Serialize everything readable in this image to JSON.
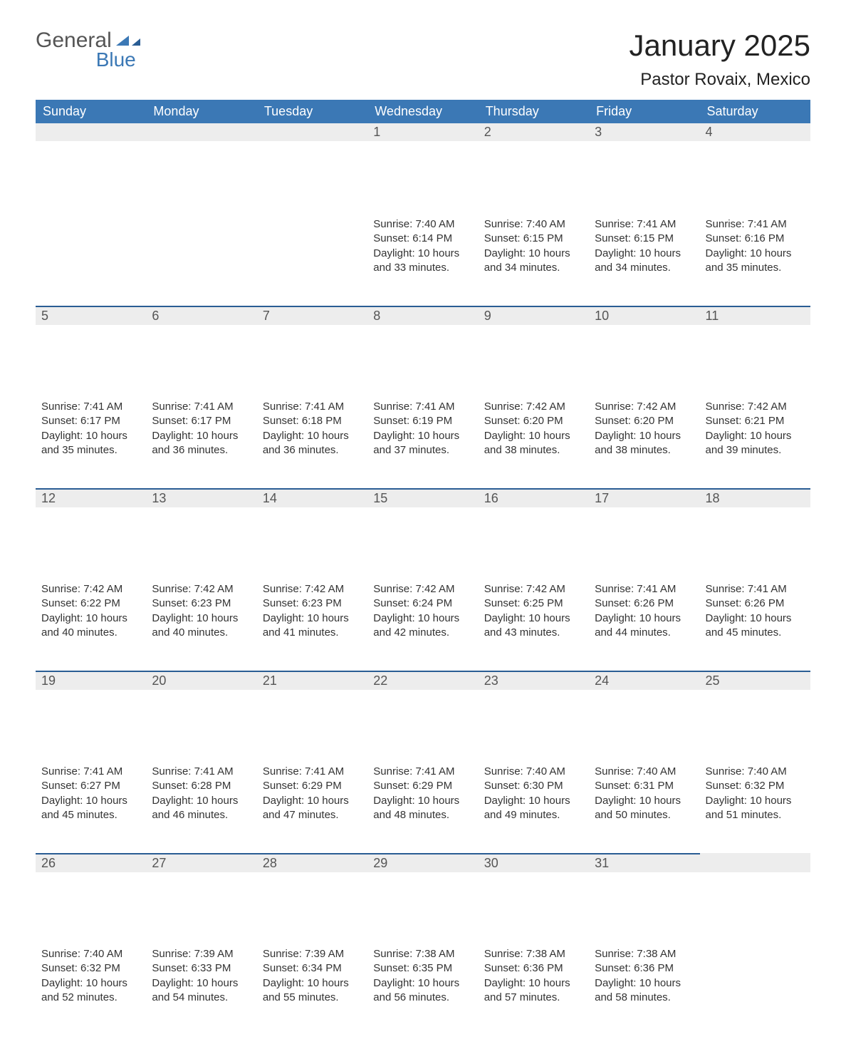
{
  "logo": {
    "text1": "General",
    "text2": "Blue"
  },
  "title": "January 2025",
  "location": "Pastor Rovaix, Mexico",
  "colors": {
    "header_bg": "#3b78b5",
    "header_text": "#ffffff",
    "daynum_bg": "#ededed",
    "daynum_text": "#555555",
    "body_text": "#333333",
    "row_divider": "#2a5d94",
    "page_bg": "#ffffff",
    "logo_gray": "#555555",
    "logo_blue": "#3b78b5"
  },
  "weekdays": [
    "Sunday",
    "Monday",
    "Tuesday",
    "Wednesday",
    "Thursday",
    "Friday",
    "Saturday"
  ],
  "weeks": [
    [
      {
        "n": "",
        "lines": [
          "",
          "",
          "",
          ""
        ]
      },
      {
        "n": "",
        "lines": [
          "",
          "",
          "",
          ""
        ]
      },
      {
        "n": "",
        "lines": [
          "",
          "",
          "",
          ""
        ]
      },
      {
        "n": "1",
        "lines": [
          "Sunrise: 7:40 AM",
          "Sunset: 6:14 PM",
          "Daylight: 10 hours",
          "and 33 minutes."
        ]
      },
      {
        "n": "2",
        "lines": [
          "Sunrise: 7:40 AM",
          "Sunset: 6:15 PM",
          "Daylight: 10 hours",
          "and 34 minutes."
        ]
      },
      {
        "n": "3",
        "lines": [
          "Sunrise: 7:41 AM",
          "Sunset: 6:15 PM",
          "Daylight: 10 hours",
          "and 34 minutes."
        ]
      },
      {
        "n": "4",
        "lines": [
          "Sunrise: 7:41 AM",
          "Sunset: 6:16 PM",
          "Daylight: 10 hours",
          "and 35 minutes."
        ]
      }
    ],
    [
      {
        "n": "5",
        "lines": [
          "Sunrise: 7:41 AM",
          "Sunset: 6:17 PM",
          "Daylight: 10 hours",
          "and 35 minutes."
        ]
      },
      {
        "n": "6",
        "lines": [
          "Sunrise: 7:41 AM",
          "Sunset: 6:17 PM",
          "Daylight: 10 hours",
          "and 36 minutes."
        ]
      },
      {
        "n": "7",
        "lines": [
          "Sunrise: 7:41 AM",
          "Sunset: 6:18 PM",
          "Daylight: 10 hours",
          "and 36 minutes."
        ]
      },
      {
        "n": "8",
        "lines": [
          "Sunrise: 7:41 AM",
          "Sunset: 6:19 PM",
          "Daylight: 10 hours",
          "and 37 minutes."
        ]
      },
      {
        "n": "9",
        "lines": [
          "Sunrise: 7:42 AM",
          "Sunset: 6:20 PM",
          "Daylight: 10 hours",
          "and 38 minutes."
        ]
      },
      {
        "n": "10",
        "lines": [
          "Sunrise: 7:42 AM",
          "Sunset: 6:20 PM",
          "Daylight: 10 hours",
          "and 38 minutes."
        ]
      },
      {
        "n": "11",
        "lines": [
          "Sunrise: 7:42 AM",
          "Sunset: 6:21 PM",
          "Daylight: 10 hours",
          "and 39 minutes."
        ]
      }
    ],
    [
      {
        "n": "12",
        "lines": [
          "Sunrise: 7:42 AM",
          "Sunset: 6:22 PM",
          "Daylight: 10 hours",
          "and 40 minutes."
        ]
      },
      {
        "n": "13",
        "lines": [
          "Sunrise: 7:42 AM",
          "Sunset: 6:23 PM",
          "Daylight: 10 hours",
          "and 40 minutes."
        ]
      },
      {
        "n": "14",
        "lines": [
          "Sunrise: 7:42 AM",
          "Sunset: 6:23 PM",
          "Daylight: 10 hours",
          "and 41 minutes."
        ]
      },
      {
        "n": "15",
        "lines": [
          "Sunrise: 7:42 AM",
          "Sunset: 6:24 PM",
          "Daylight: 10 hours",
          "and 42 minutes."
        ]
      },
      {
        "n": "16",
        "lines": [
          "Sunrise: 7:42 AM",
          "Sunset: 6:25 PM",
          "Daylight: 10 hours",
          "and 43 minutes."
        ]
      },
      {
        "n": "17",
        "lines": [
          "Sunrise: 7:41 AM",
          "Sunset: 6:26 PM",
          "Daylight: 10 hours",
          "and 44 minutes."
        ]
      },
      {
        "n": "18",
        "lines": [
          "Sunrise: 7:41 AM",
          "Sunset: 6:26 PM",
          "Daylight: 10 hours",
          "and 45 minutes."
        ]
      }
    ],
    [
      {
        "n": "19",
        "lines": [
          "Sunrise: 7:41 AM",
          "Sunset: 6:27 PM",
          "Daylight: 10 hours",
          "and 45 minutes."
        ]
      },
      {
        "n": "20",
        "lines": [
          "Sunrise: 7:41 AM",
          "Sunset: 6:28 PM",
          "Daylight: 10 hours",
          "and 46 minutes."
        ]
      },
      {
        "n": "21",
        "lines": [
          "Sunrise: 7:41 AM",
          "Sunset: 6:29 PM",
          "Daylight: 10 hours",
          "and 47 minutes."
        ]
      },
      {
        "n": "22",
        "lines": [
          "Sunrise: 7:41 AM",
          "Sunset: 6:29 PM",
          "Daylight: 10 hours",
          "and 48 minutes."
        ]
      },
      {
        "n": "23",
        "lines": [
          "Sunrise: 7:40 AM",
          "Sunset: 6:30 PM",
          "Daylight: 10 hours",
          "and 49 minutes."
        ]
      },
      {
        "n": "24",
        "lines": [
          "Sunrise: 7:40 AM",
          "Sunset: 6:31 PM",
          "Daylight: 10 hours",
          "and 50 minutes."
        ]
      },
      {
        "n": "25",
        "lines": [
          "Sunrise: 7:40 AM",
          "Sunset: 6:32 PM",
          "Daylight: 10 hours",
          "and 51 minutes."
        ]
      }
    ],
    [
      {
        "n": "26",
        "lines": [
          "Sunrise: 7:40 AM",
          "Sunset: 6:32 PM",
          "Daylight: 10 hours",
          "and 52 minutes."
        ]
      },
      {
        "n": "27",
        "lines": [
          "Sunrise: 7:39 AM",
          "Sunset: 6:33 PM",
          "Daylight: 10 hours",
          "and 54 minutes."
        ]
      },
      {
        "n": "28",
        "lines": [
          "Sunrise: 7:39 AM",
          "Sunset: 6:34 PM",
          "Daylight: 10 hours",
          "and 55 minutes."
        ]
      },
      {
        "n": "29",
        "lines": [
          "Sunrise: 7:38 AM",
          "Sunset: 6:35 PM",
          "Daylight: 10 hours",
          "and 56 minutes."
        ]
      },
      {
        "n": "30",
        "lines": [
          "Sunrise: 7:38 AM",
          "Sunset: 6:36 PM",
          "Daylight: 10 hours",
          "and 57 minutes."
        ]
      },
      {
        "n": "31",
        "lines": [
          "Sunrise: 7:38 AM",
          "Sunset: 6:36 PM",
          "Daylight: 10 hours",
          "and 58 minutes."
        ]
      },
      {
        "n": "",
        "lines": [
          "",
          "",
          "",
          ""
        ]
      }
    ]
  ]
}
